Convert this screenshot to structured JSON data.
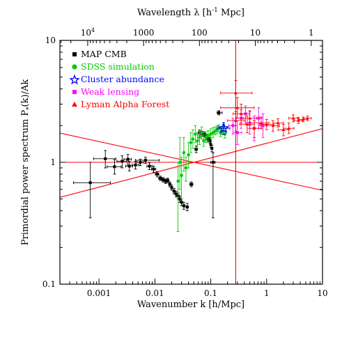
{
  "chart_data": {
    "type": "scatter",
    "title": "",
    "xlabel": "Wavenumber k [h/Mpc]",
    "ylabel": "Primordial power spectrum P",
    "ylabel_sub": "*",
    "ylabel_tail": "(k)/Ak",
    "top_xlabel": "Wavelength λ [h",
    "top_xlabel_sup": "-1",
    "top_xlabel_tail": " Mpc]",
    "xscale": "log",
    "yscale": "log",
    "xlim": [
      0.0002,
      10
    ],
    "ylim": [
      0.1,
      10
    ],
    "x_ticks": [
      {
        "value": 0.001,
        "label": "0.001"
      },
      {
        "value": 0.01,
        "label": "0.01"
      },
      {
        "value": 0.1,
        "label": "0.1"
      },
      {
        "value": 1,
        "label": "1"
      },
      {
        "value": 10,
        "label": "10"
      }
    ],
    "y_ticks": [
      {
        "value": 0.1,
        "label": "0.1"
      },
      {
        "value": 1,
        "label": "1"
      },
      {
        "value": 10,
        "label": "10"
      }
    ],
    "top_ticks": [
      {
        "value": 10000,
        "label": "10",
        "sup": "4"
      },
      {
        "value": 1000,
        "label": "1000"
      },
      {
        "value": 100,
        "label": "100"
      },
      {
        "value": 10,
        "label": "10"
      },
      {
        "value": 1,
        "label": "1"
      }
    ],
    "legend_position": "top-left",
    "grid": false,
    "series": [
      {
        "name": "MAP CMB",
        "color": "#000000",
        "marker": "square",
        "points": [
          {
            "k": 0.0007,
            "y": 0.68,
            "ylo": 0.35,
            "yhi": 1.0,
            "klo": 0.00035,
            "khi": 0.0016
          },
          {
            "k": 0.0013,
            "y": 1.07,
            "ylo": 0.9,
            "yhi": 1.25,
            "klo": 0.0008,
            "khi": 0.002
          },
          {
            "k": 0.0019,
            "y": 0.92,
            "ylo": 0.8,
            "yhi": 1.05,
            "klo": 0.0014,
            "khi": 0.0025
          },
          {
            "k": 0.0026,
            "y": 1.02,
            "ylo": 0.9,
            "yhi": 1.13,
            "klo": 0.0021,
            "khi": 0.0031
          },
          {
            "k": 0.0033,
            "y": 1.06,
            "ylo": 0.95,
            "yhi": 1.16,
            "klo": 0.0028,
            "khi": 0.0038
          },
          {
            "k": 0.0035,
            "y": 0.93,
            "ylo": 0.85,
            "yhi": 1.02,
            "klo": 0.003,
            "khi": 0.004
          },
          {
            "k": 0.0045,
            "y": 0.95,
            "ylo": 0.88,
            "yhi": 1.02,
            "klo": 0.0039,
            "khi": 0.0052
          },
          {
            "k": 0.0055,
            "y": 1.0,
            "ylo": 0.94,
            "yhi": 1.06,
            "klo": 0.0048,
            "khi": 0.0062
          },
          {
            "k": 0.0068,
            "y": 1.04,
            "ylo": 0.98,
            "yhi": 1.1,
            "klo": 0.0045,
            "khi": 0.012
          },
          {
            "k": 0.008,
            "y": 0.93,
            "ylo": 0.87,
            "yhi": 0.99,
            "klo": 0.0072,
            "khi": 0.0089
          },
          {
            "k": 0.0095,
            "y": 0.88,
            "ylo": 0.83,
            "yhi": 0.93,
            "klo": 0.0087,
            "khi": 0.0104
          },
          {
            "k": 0.011,
            "y": 0.8,
            "ylo": 0.76,
            "yhi": 0.84,
            "klo": 0.0102,
            "khi": 0.0118
          },
          {
            "k": 0.0125,
            "y": 0.74,
            "ylo": 0.71,
            "yhi": 0.77,
            "klo": 0.0117,
            "khi": 0.0133
          },
          {
            "k": 0.014,
            "y": 0.72,
            "ylo": 0.69,
            "yhi": 0.75,
            "klo": 0.0132,
            "khi": 0.0149
          },
          {
            "k": 0.0155,
            "y": 0.7,
            "ylo": 0.67,
            "yhi": 0.73,
            "klo": 0.0147,
            "khi": 0.0164
          },
          {
            "k": 0.017,
            "y": 0.71,
            "ylo": 0.68,
            "yhi": 0.74,
            "klo": 0.0162,
            "khi": 0.0179
          },
          {
            "k": 0.0185,
            "y": 0.66,
            "ylo": 0.63,
            "yhi": 0.69,
            "klo": 0.0177,
            "khi": 0.0194
          },
          {
            "k": 0.02,
            "y": 0.62,
            "ylo": 0.59,
            "yhi": 0.65,
            "klo": 0.0192,
            "khi": 0.0209
          },
          {
            "k": 0.022,
            "y": 0.58,
            "ylo": 0.55,
            "yhi": 0.61,
            "klo": 0.0211,
            "khi": 0.0231
          },
          {
            "k": 0.024,
            "y": 0.55,
            "ylo": 0.52,
            "yhi": 0.58,
            "klo": 0.023,
            "khi": 0.0251
          },
          {
            "k": 0.026,
            "y": 0.53,
            "ylo": 0.5,
            "yhi": 0.56,
            "klo": 0.0249,
            "khi": 0.0273
          },
          {
            "k": 0.028,
            "y": 0.5,
            "ylo": 0.47,
            "yhi": 0.53,
            "klo": 0.0268,
            "khi": 0.0294
          },
          {
            "k": 0.03,
            "y": 0.47,
            "ylo": 0.44,
            "yhi": 0.5,
            "klo": 0.0286,
            "khi": 0.0315
          },
          {
            "k": 0.033,
            "y": 0.44,
            "ylo": 0.41,
            "yhi": 0.47,
            "klo": 0.0315,
            "khi": 0.0347
          },
          {
            "k": 0.038,
            "y": 0.43,
            "ylo": 0.4,
            "yhi": 0.46,
            "klo": 0.036,
            "khi": 0.04
          },
          {
            "k": 0.045,
            "y": 0.66,
            "ylo": 0.63,
            "yhi": 0.69,
            "klo": 0.042,
            "khi": 0.048
          },
          {
            "k": 0.055,
            "y": 1.28,
            "ylo": 1.2,
            "yhi": 1.36,
            "klo": 0.052,
            "khi": 0.058
          },
          {
            "k": 0.063,
            "y": 1.75,
            "ylo": 1.67,
            "yhi": 1.83,
            "klo": 0.06,
            "khi": 0.066
          },
          {
            "k": 0.07,
            "y": 1.72,
            "ylo": 1.64,
            "yhi": 1.8,
            "klo": 0.067,
            "khi": 0.073
          },
          {
            "k": 0.077,
            "y": 1.69,
            "ylo": 1.61,
            "yhi": 1.77,
            "klo": 0.074,
            "khi": 0.08
          },
          {
            "k": 0.083,
            "y": 1.62,
            "ylo": 1.54,
            "yhi": 1.7,
            "klo": 0.08,
            "khi": 0.086
          },
          {
            "k": 0.09,
            "y": 1.55,
            "ylo": 1.47,
            "yhi": 1.63,
            "klo": 0.087,
            "khi": 0.093
          },
          {
            "k": 0.097,
            "y": 1.52,
            "ylo": 1.44,
            "yhi": 1.6,
            "klo": 0.094,
            "khi": 0.1
          },
          {
            "k": 0.1,
            "y": 1.4,
            "ylo": 1.32,
            "yhi": 1.48,
            "klo": 0.097,
            "khi": 0.103
          },
          {
            "k": 0.105,
            "y": 1.3,
            "ylo": 1.22,
            "yhi": 1.38,
            "klo": 0.102,
            "khi": 0.108
          },
          {
            "k": 0.11,
            "y": 1.0,
            "ylo": 0.35,
            "yhi": 1.2,
            "klo": 0.1,
            "khi": 0.12
          },
          {
            "k": 0.14,
            "y": 2.55,
            "ylo": 2.45,
            "yhi": 2.65,
            "klo": 0.13,
            "khi": 0.16
          }
        ]
      },
      {
        "name": "SDSS simulation",
        "color": "#00cc00",
        "marker": "circle",
        "points": [
          {
            "k": 0.026,
            "y": 0.7,
            "ylo": 0.27,
            "yhi": 1.0
          },
          {
            "k": 0.028,
            "y": 1.0,
            "ylo": 0.6,
            "yhi": 1.6
          },
          {
            "k": 0.03,
            "y": 0.78,
            "ylo": 0.5,
            "yhi": 1.1
          },
          {
            "k": 0.033,
            "y": 1.2,
            "ylo": 0.85,
            "yhi": 1.6
          },
          {
            "k": 0.036,
            "y": 0.9,
            "ylo": 0.7,
            "yhi": 1.1
          },
          {
            "k": 0.04,
            "y": 1.15,
            "ylo": 0.9,
            "yhi": 1.45
          },
          {
            "k": 0.044,
            "y": 1.45,
            "ylo": 1.2,
            "yhi": 1.75
          },
          {
            "k": 0.048,
            "y": 1.55,
            "ylo": 1.3,
            "yhi": 1.85
          },
          {
            "k": 0.053,
            "y": 1.7,
            "ylo": 1.45,
            "yhi": 2.0
          },
          {
            "k": 0.058,
            "y": 1.5,
            "ylo": 1.3,
            "yhi": 1.75
          },
          {
            "k": 0.063,
            "y": 1.6,
            "ylo": 1.4,
            "yhi": 1.85
          },
          {
            "k": 0.069,
            "y": 1.75,
            "ylo": 1.55,
            "yhi": 1.95
          },
          {
            "k": 0.075,
            "y": 1.5,
            "ylo": 1.35,
            "yhi": 1.68
          },
          {
            "k": 0.082,
            "y": 1.6,
            "ylo": 1.45,
            "yhi": 1.78
          },
          {
            "k": 0.09,
            "y": 1.65,
            "ylo": 1.5,
            "yhi": 1.82
          },
          {
            "k": 0.1,
            "y": 1.7,
            "ylo": 1.55,
            "yhi": 1.88
          },
          {
            "k": 0.11,
            "y": 1.75,
            "ylo": 1.6,
            "yhi": 1.92
          },
          {
            "k": 0.12,
            "y": 1.8,
            "ylo": 1.68,
            "yhi": 1.95
          },
          {
            "k": 0.13,
            "y": 1.85,
            "ylo": 1.72,
            "yhi": 2.0
          },
          {
            "k": 0.14,
            "y": 1.9,
            "ylo": 1.78,
            "yhi": 2.03
          },
          {
            "k": 0.15,
            "y": 1.75,
            "ylo": 1.62,
            "yhi": 1.9
          },
          {
            "k": 0.16,
            "y": 1.8,
            "ylo": 1.68,
            "yhi": 1.94
          },
          {
            "k": 0.17,
            "y": 1.92,
            "ylo": 1.8,
            "yhi": 2.05
          },
          {
            "k": 0.18,
            "y": 1.7,
            "ylo": 1.58,
            "yhi": 1.83
          }
        ]
      },
      {
        "name": "Cluster abundance",
        "color": "#0000ff",
        "marker": "star",
        "points": [
          {
            "k": 0.17,
            "y": 1.9,
            "ylo": 1.7,
            "yhi": 2.12,
            "klo": 0.13,
            "khi": 0.22
          }
        ]
      },
      {
        "name": "Weak lensing",
        "color": "#ff00ff",
        "marker": "square",
        "points": [
          {
            "k": 0.25,
            "y": 2.0,
            "ylo": 1.7,
            "yhi": 2.3,
            "klo": 0.21,
            "khi": 0.3
          },
          {
            "k": 0.3,
            "y": 1.75,
            "ylo": 1.4,
            "yhi": 2.2,
            "klo": 0.25,
            "khi": 0.36
          },
          {
            "k": 0.35,
            "y": 2.3,
            "ylo": 1.9,
            "yhi": 2.7,
            "klo": 0.29,
            "khi": 0.42
          },
          {
            "k": 0.42,
            "y": 2.5,
            "ylo": 2.1,
            "yhi": 2.9,
            "klo": 0.35,
            "khi": 0.5
          },
          {
            "k": 0.5,
            "y": 2.1,
            "ylo": 1.7,
            "yhi": 2.6,
            "klo": 0.42,
            "khi": 0.6
          },
          {
            "k": 0.6,
            "y": 1.9,
            "ylo": 1.5,
            "yhi": 2.4,
            "klo": 0.5,
            "khi": 0.72
          },
          {
            "k": 0.72,
            "y": 2.3,
            "ylo": 1.9,
            "yhi": 2.8,
            "klo": 0.6,
            "khi": 0.86
          },
          {
            "k": 0.86,
            "y": 2.0,
            "ylo": 1.6,
            "yhi": 2.5,
            "klo": 0.72,
            "khi": 1.0
          }
        ]
      },
      {
        "name": "Lyman Alpha Forest",
        "color": "#ff0000",
        "marker": "triangle",
        "points": [
          {
            "k": 0.28,
            "y": 3.7,
            "ylo": 2.8,
            "yhi": 4.7,
            "klo": 0.15,
            "khi": 0.55
          },
          {
            "k": 0.3,
            "y": 2.8,
            "ylo": 2.3,
            "yhi": 3.4,
            "klo": 0.15,
            "khi": 0.6
          },
          {
            "k": 0.28,
            "y": 2.2,
            "ylo": 1.8,
            "yhi": 2.6,
            "klo": 0.2,
            "khi": 0.4
          },
          {
            "k": 0.35,
            "y": 2.5,
            "ylo": 2.1,
            "yhi": 3.0,
            "klo": 0.25,
            "khi": 0.5
          },
          {
            "k": 0.45,
            "y": 2.05,
            "ylo": 1.75,
            "yhi": 2.4,
            "klo": 0.33,
            "khi": 0.6
          },
          {
            "k": 0.5,
            "y": 2.3,
            "ylo": 2.0,
            "yhi": 2.65,
            "klo": 0.38,
            "khi": 0.66
          },
          {
            "k": 0.6,
            "y": 1.9,
            "ylo": 1.6,
            "yhi": 2.2,
            "klo": 0.45,
            "khi": 0.8
          },
          {
            "k": 0.8,
            "y": 2.1,
            "ylo": 1.9,
            "yhi": 2.35,
            "klo": 0.6,
            "khi": 1.1
          },
          {
            "k": 1.0,
            "y": 2.05,
            "ylo": 1.85,
            "yhi": 2.25,
            "klo": 0.75,
            "khi": 1.35
          },
          {
            "k": 1.3,
            "y": 2.0,
            "ylo": 1.8,
            "yhi": 2.2,
            "klo": 1.0,
            "khi": 1.7
          },
          {
            "k": 1.6,
            "y": 2.1,
            "ylo": 1.95,
            "yhi": 2.28,
            "klo": 1.3,
            "khi": 2.0
          },
          {
            "k": 2.0,
            "y": 1.85,
            "ylo": 1.65,
            "yhi": 2.05,
            "klo": 1.6,
            "khi": 2.5
          },
          {
            "k": 2.5,
            "y": 1.9,
            "ylo": 1.72,
            "yhi": 2.1,
            "klo": 2.0,
            "khi": 3.1
          },
          {
            "k": 3.0,
            "y": 2.3,
            "ylo": 2.15,
            "yhi": 2.45,
            "klo": 2.5,
            "khi": 3.6
          },
          {
            "k": 3.7,
            "y": 2.2,
            "ylo": 2.08,
            "yhi": 2.33,
            "klo": 3.1,
            "khi": 4.4
          },
          {
            "k": 4.5,
            "y": 2.25,
            "ylo": 2.15,
            "yhi": 2.35,
            "klo": 3.8,
            "khi": 5.4
          },
          {
            "k": 5.4,
            "y": 2.3,
            "ylo": 2.2,
            "yhi": 2.4,
            "klo": 4.6,
            "khi": 6.3
          }
        ]
      }
    ],
    "lines": [
      {
        "color": "#ff0000",
        "type": "hline",
        "y": 1
      },
      {
        "color": "#ff0000",
        "type": "vline",
        "x": 0.28
      },
      {
        "color": "#ff0000",
        "type": "power",
        "pivot_k": 0.05,
        "pivot_y": 1.0,
        "slope": 0.12
      },
      {
        "color": "#ff0000",
        "type": "power",
        "pivot_k": 0.05,
        "pivot_y": 1.0,
        "slope": -0.1
      }
    ]
  }
}
